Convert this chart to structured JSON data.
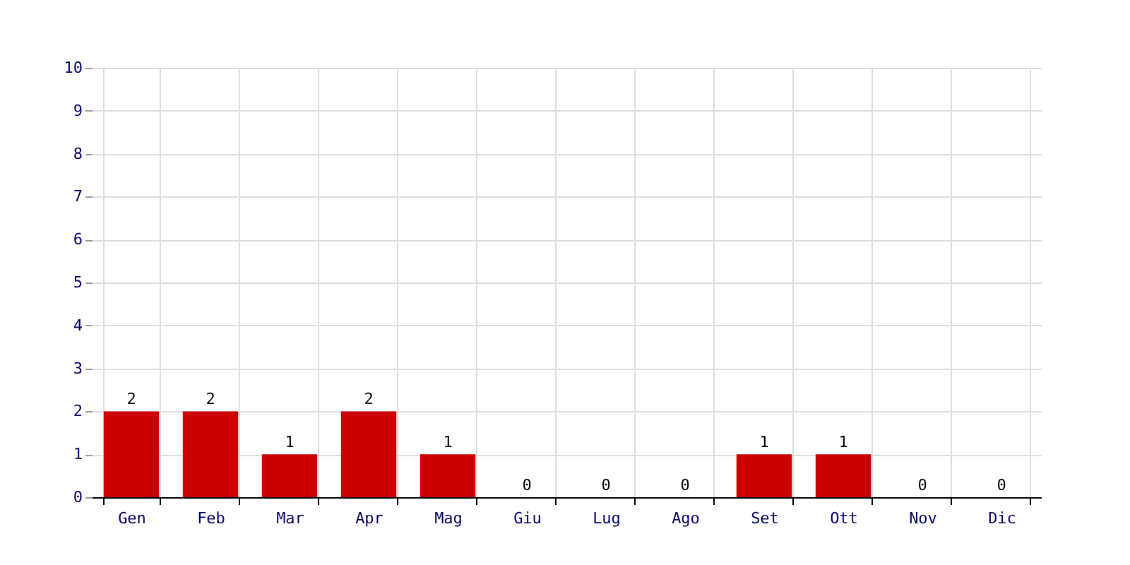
{
  "chart_data": {
    "type": "bar",
    "categories": [
      "Gen",
      "Feb",
      "Mar",
      "Apr",
      "Mag",
      "Giu",
      "Lug",
      "Ago",
      "Set",
      "Ott",
      "Nov",
      "Dic"
    ],
    "values": [
      2,
      2,
      1,
      2,
      1,
      0,
      0,
      0,
      1,
      1,
      0,
      0
    ],
    "color": "#cc0000",
    "ylim": [
      0,
      10
    ],
    "yticks": [
      0,
      1,
      2,
      3,
      4,
      5,
      6,
      7,
      8,
      9,
      10
    ],
    "grid": true,
    "data_labels": true
  }
}
